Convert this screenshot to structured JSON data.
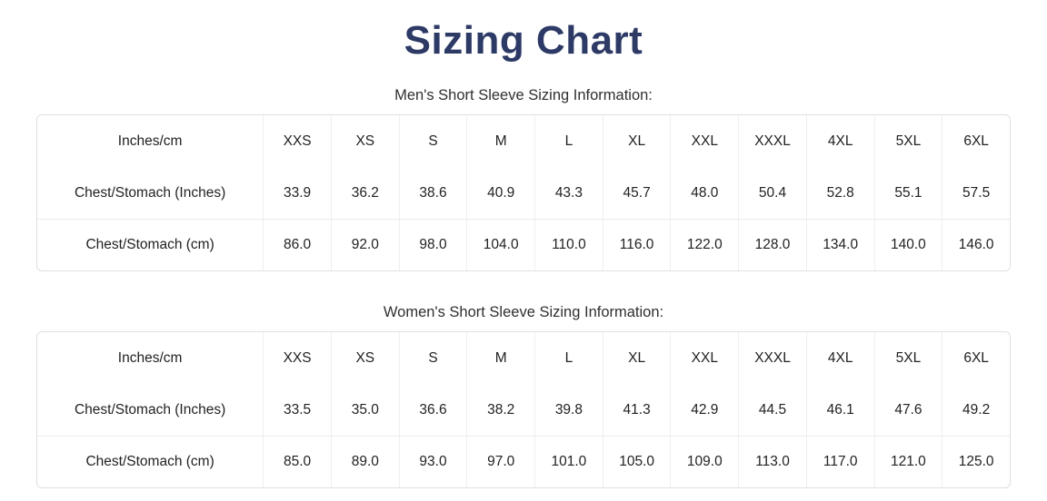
{
  "page": {
    "title": "Sizing Chart"
  },
  "colors": {
    "title": "#2d3a66",
    "text": "#222222",
    "border": "#e0e0e0"
  },
  "tables": [
    {
      "caption": "Men's Short Sleeve Sizing Information:",
      "header": [
        "Inches/cm",
        "XXS",
        "XS",
        "S",
        "M",
        "L",
        "XL",
        "XXL",
        "XXXL",
        "4XL",
        "5XL",
        "6XL"
      ],
      "rows": [
        {
          "label": "Chest/Stomach (Inches)",
          "values": [
            "33.9",
            "36.2",
            "38.6",
            "40.9",
            "43.3",
            "45.7",
            "48.0",
            "50.4",
            "52.8",
            "55.1",
            "57.5"
          ]
        },
        {
          "label": "Chest/Stomach (cm)",
          "values": [
            "86.0",
            "92.0",
            "98.0",
            "104.0",
            "110.0",
            "116.0",
            "122.0",
            "128.0",
            "134.0",
            "140.0",
            "146.0"
          ]
        }
      ]
    },
    {
      "caption": "Women's Short Sleeve Sizing Information:",
      "header": [
        "Inches/cm",
        "XXS",
        "XS",
        "S",
        "M",
        "L",
        "XL",
        "XXL",
        "XXXL",
        "4XL",
        "5XL",
        "6XL"
      ],
      "rows": [
        {
          "label": "Chest/Stomach (Inches)",
          "values": [
            "33.5",
            "35.0",
            "36.6",
            "38.2",
            "39.8",
            "41.3",
            "42.9",
            "44.5",
            "46.1",
            "47.6",
            "49.2"
          ]
        },
        {
          "label": "Chest/Stomach (cm)",
          "values": [
            "85.0",
            "89.0",
            "93.0",
            "97.0",
            "101.0",
            "105.0",
            "109.0",
            "113.0",
            "117.0",
            "121.0",
            "125.0"
          ]
        }
      ]
    }
  ]
}
